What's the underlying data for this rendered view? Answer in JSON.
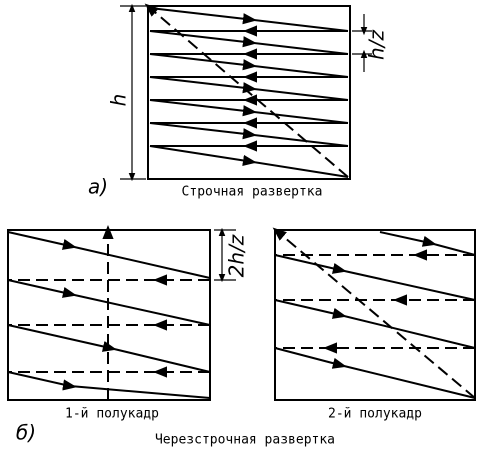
{
  "label_a": "а)",
  "h": "h",
  "h_z": "h/z",
  "caption_a": "Строчная развертка",
  "two_h_z": "2h/z",
  "label_b": "б)",
  "field1": "1-й полукадр",
  "field2": "2-й полукадр",
  "caption_b": "Черезстрочная развертка"
}
